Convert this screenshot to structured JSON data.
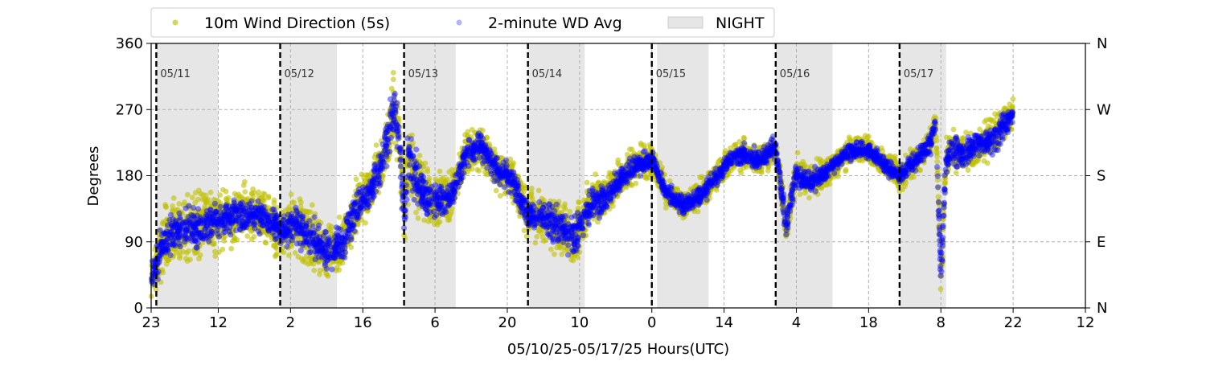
{
  "chart_data": {
    "type": "scatter",
    "xlabel": "05/10/25-05/17/25  Hours(UTC)",
    "ylabel": "Degrees",
    "ylim": [
      0,
      360
    ],
    "yticks": [
      0,
      90,
      180,
      270,
      360
    ],
    "right_ticks": [
      "N",
      "E",
      "S",
      "W",
      "N"
    ],
    "start": "2025-05-10 23:00",
    "xlim": [
      "2025-05-10 23:00",
      "2025-05-18 12:00"
    ],
    "xtick_labels": [
      "23",
      "12",
      "2",
      "16",
      "6",
      "20",
      "10",
      "0",
      "14",
      "4",
      "18",
      "8",
      "22",
      "12"
    ],
    "xtick_times": [
      "2025-05-10 23:00",
      "2025-05-11 12:00",
      "2025-05-12 02:00",
      "2025-05-12 16:00",
      "2025-05-13 06:00",
      "2025-05-13 20:00",
      "2025-05-14 10:00",
      "2025-05-15 00:00",
      "2025-05-15 14:00",
      "2025-05-16 04:00",
      "2025-05-16 18:00",
      "2025-05-17 08:00",
      "2025-05-17 22:00",
      "2025-05-18 12:00"
    ],
    "grid": true,
    "legend": {
      "placement": "top",
      "entries": [
        {
          "label": "10m Wind Direction (5s)",
          "color": "#bfbf00",
          "kind": "marker"
        },
        {
          "label": "2-minute WD Avg",
          "color": "#0000ff",
          "kind": "marker"
        },
        {
          "label": "NIGHT",
          "color": "#e6e6e6",
          "kind": "patch"
        }
      ]
    },
    "midnight_labels": [
      "05/11",
      "05/12",
      "05/13",
      "05/14",
      "05/15",
      "05/16",
      "05/17"
    ],
    "midnight_times": [
      "2025-05-11 00:00",
      "2025-05-12 00:00",
      "2025-05-13 00:00",
      "2025-05-14 00:00",
      "2025-05-15 00:00",
      "2025-05-16 00:00",
      "2025-05-17 00:00"
    ],
    "night_periods": [
      [
        "2025-05-11 00:00",
        "2025-05-11 12:00"
      ],
      [
        "2025-05-12 00:00",
        "2025-05-12 11:00"
      ],
      [
        "2025-05-13 00:00",
        "2025-05-13 10:00"
      ],
      [
        "2025-05-14 00:00",
        "2025-05-14 11:00"
      ],
      [
        "2025-05-15 01:00",
        "2025-05-15 11:00"
      ],
      [
        "2025-05-16 00:00",
        "2025-05-16 11:00"
      ],
      [
        "2025-05-17 00:00",
        "2025-05-17 09:00"
      ]
    ],
    "series": [
      {
        "name": "10m Wind Direction (5s)",
        "color": "#bfbf00",
        "x": [
          "2025-05-10 23:00",
          "2025-05-11 00:00",
          "2025-05-11 01:00",
          "2025-05-11 03:00",
          "2025-05-11 06:00",
          "2025-05-11 09:00",
          "2025-05-11 12:00",
          "2025-05-11 15:00",
          "2025-05-11 18:00",
          "2025-05-11 21:00",
          "2025-05-12 00:00",
          "2025-05-12 03:00",
          "2025-05-12 06:00",
          "2025-05-12 09:00",
          "2025-05-12 12:00",
          "2025-05-12 15:00",
          "2025-05-12 18:00",
          "2025-05-12 20:00",
          "2025-05-12 22:00",
          "2025-05-12 23:00",
          "2025-05-13 00:00",
          "2025-05-13 01:00",
          "2025-05-13 03:00",
          "2025-05-13 06:00",
          "2025-05-13 09:00",
          "2025-05-13 12:00",
          "2025-05-13 15:00",
          "2025-05-13 18:00",
          "2025-05-13 21:00",
          "2025-05-14 00:00",
          "2025-05-14 03:00",
          "2025-05-14 06:00",
          "2025-05-14 09:00",
          "2025-05-14 12:00",
          "2025-05-14 15:00",
          "2025-05-14 18:00",
          "2025-05-14 21:00",
          "2025-05-15 00:00",
          "2025-05-15 03:00",
          "2025-05-15 06:00",
          "2025-05-15 09:00",
          "2025-05-15 12:00",
          "2025-05-15 15:00",
          "2025-05-15 18:00",
          "2025-05-15 21:00",
          "2025-05-16 00:00",
          "2025-05-16 02:00",
          "2025-05-16 04:00",
          "2025-05-16 06:00",
          "2025-05-16 09:00",
          "2025-05-16 12:00",
          "2025-05-16 15:00",
          "2025-05-16 18:00",
          "2025-05-16 21:00",
          "2025-05-17 00:00",
          "2025-05-17 03:00",
          "2025-05-17 06:00",
          "2025-05-17 07:00",
          "2025-05-17 08:00",
          "2025-05-17 09:00",
          "2025-05-17 10:00",
          "2025-05-17 12:00",
          "2025-05-17 15:00",
          "2025-05-17 18:00",
          "2025-05-17 21:00",
          "2025-05-17 22:00"
        ],
        "y": [
          40,
          60,
          85,
          100,
          110,
          112,
          118,
          125,
          128,
          122,
          105,
          115,
          95,
          75,
          85,
          140,
          165,
          205,
          270,
          240,
          130,
          210,
          160,
          145,
          150,
          210,
          220,
          185,
          175,
          125,
          125,
          110,
          95,
          140,
          150,
          175,
          195,
          200,
          155,
          140,
          150,
          175,
          200,
          210,
          200,
          220,
          110,
          185,
          170,
          180,
          200,
          215,
          215,
          195,
          180,
          200,
          225,
          255,
          40,
          200,
          215,
          210,
          220,
          230,
          255,
          265
        ],
        "spread": [
          50,
          60,
          65,
          70,
          70,
          70,
          65,
          60,
          55,
          55,
          60,
          65,
          60,
          55,
          55,
          55,
          55,
          60,
          70,
          70,
          80,
          80,
          70,
          55,
          50,
          45,
          45,
          45,
          45,
          50,
          55,
          55,
          55,
          50,
          45,
          40,
          35,
          35,
          30,
          30,
          30,
          30,
          30,
          30,
          30,
          35,
          40,
          40,
          35,
          30,
          30,
          30,
          30,
          30,
          30,
          30,
          30,
          35,
          45,
          40,
          40,
          40,
          40,
          40,
          40,
          40
        ]
      },
      {
        "name": "2-minute WD Avg",
        "color": "#0000ff",
        "x": [
          "2025-05-10 23:00",
          "2025-05-11 00:00",
          "2025-05-11 01:00",
          "2025-05-11 03:00",
          "2025-05-11 06:00",
          "2025-05-11 09:00",
          "2025-05-11 12:00",
          "2025-05-11 15:00",
          "2025-05-11 18:00",
          "2025-05-11 21:00",
          "2025-05-12 00:00",
          "2025-05-12 03:00",
          "2025-05-12 06:00",
          "2025-05-12 09:00",
          "2025-05-12 12:00",
          "2025-05-12 15:00",
          "2025-05-12 18:00",
          "2025-05-12 20:00",
          "2025-05-12 22:00",
          "2025-05-12 23:00",
          "2025-05-13 00:00",
          "2025-05-13 01:00",
          "2025-05-13 03:00",
          "2025-05-13 06:00",
          "2025-05-13 09:00",
          "2025-05-13 12:00",
          "2025-05-13 15:00",
          "2025-05-13 18:00",
          "2025-05-13 21:00",
          "2025-05-14 00:00",
          "2025-05-14 03:00",
          "2025-05-14 06:00",
          "2025-05-14 09:00",
          "2025-05-14 12:00",
          "2025-05-14 15:00",
          "2025-05-14 18:00",
          "2025-05-14 21:00",
          "2025-05-15 00:00",
          "2025-05-15 03:00",
          "2025-05-15 06:00",
          "2025-05-15 09:00",
          "2025-05-15 12:00",
          "2025-05-15 15:00",
          "2025-05-15 18:00",
          "2025-05-15 21:00",
          "2025-05-16 00:00",
          "2025-05-16 02:00",
          "2025-05-16 04:00",
          "2025-05-16 06:00",
          "2025-05-16 09:00",
          "2025-05-16 12:00",
          "2025-05-16 15:00",
          "2025-05-16 18:00",
          "2025-05-16 21:00",
          "2025-05-17 00:00",
          "2025-05-17 03:00",
          "2025-05-17 06:00",
          "2025-05-17 07:00",
          "2025-05-17 08:00",
          "2025-05-17 09:00",
          "2025-05-17 10:00",
          "2025-05-17 12:00",
          "2025-05-17 15:00",
          "2025-05-17 18:00",
          "2025-05-17 21:00",
          "2025-05-17 22:00"
        ],
        "y": [
          40,
          60,
          85,
          100,
          110,
          112,
          118,
          125,
          128,
          122,
          105,
          115,
          95,
          75,
          85,
          140,
          165,
          205,
          270,
          240,
          130,
          210,
          160,
          145,
          150,
          210,
          220,
          185,
          175,
          125,
          125,
          110,
          95,
          140,
          150,
          175,
          195,
          200,
          155,
          140,
          150,
          175,
          200,
          210,
          200,
          220,
          110,
          185,
          170,
          180,
          200,
          215,
          215,
          195,
          180,
          200,
          225,
          255,
          40,
          200,
          215,
          210,
          220,
          230,
          255,
          265
        ],
        "spread": [
          35,
          40,
          40,
          40,
          40,
          38,
          38,
          36,
          34,
          34,
          36,
          40,
          40,
          40,
          40,
          40,
          40,
          45,
          55,
          55,
          60,
          60,
          50,
          35,
          30,
          28,
          28,
          28,
          28,
          30,
          35,
          40,
          40,
          35,
          30,
          25,
          22,
          22,
          20,
          20,
          20,
          20,
          20,
          20,
          20,
          22,
          25,
          25,
          22,
          20,
          18,
          18,
          18,
          18,
          18,
          20,
          22,
          25,
          35,
          30,
          30,
          30,
          28,
          28,
          28,
          28
        ]
      }
    ]
  }
}
